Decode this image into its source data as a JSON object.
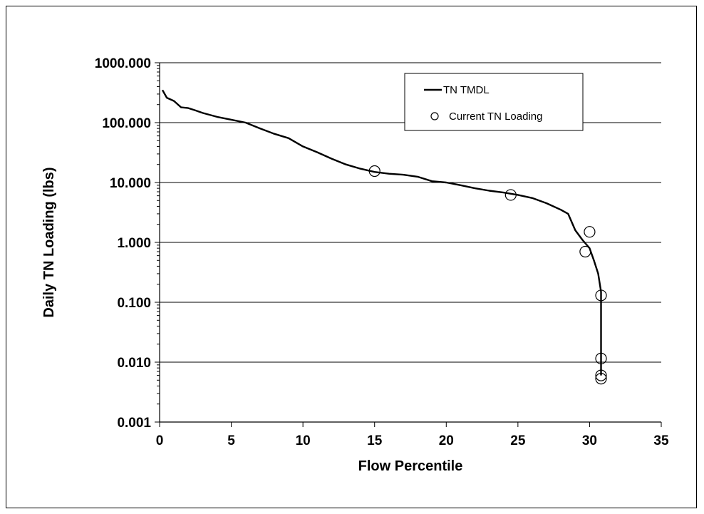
{
  "chart_data": {
    "type": "line",
    "title": "",
    "xlabel": "Flow Percentile",
    "ylabel": "Daily TN Loading (lbs)",
    "xlim": [
      0,
      35
    ],
    "ylim": [
      0.001,
      1000
    ],
    "yscale": "log",
    "grid": "horizontal",
    "legend_position": "top-right",
    "x_ticks": [
      "0",
      "5",
      "10",
      "15",
      "20",
      "25",
      "30",
      "35"
    ],
    "y_ticks": [
      "1000.000",
      "100.000",
      "10.000",
      "1.000",
      "0.100",
      "0.010",
      "0.001"
    ],
    "series": [
      {
        "name": "TN TMDL",
        "type": "line",
        "color": "#000000",
        "x": [
          0.2,
          0.5,
          1,
          1.5,
          2,
          2.5,
          3,
          4,
          5,
          6,
          7,
          8,
          9,
          10,
          11,
          12,
          13,
          14,
          15,
          16,
          17,
          18,
          19,
          20,
          21,
          22,
          23,
          24,
          25,
          26,
          27,
          28,
          28.5,
          29,
          29.5,
          30,
          30.3,
          30.6,
          30.8,
          30.8
        ],
        "y": [
          350,
          260,
          230,
          180,
          175,
          160,
          145,
          125,
          112,
          100,
          80,
          65,
          55,
          40,
          32,
          25,
          20,
          17,
          15,
          14,
          13.5,
          12.5,
          10.5,
          10,
          9,
          8,
          7.3,
          6.8,
          6.2,
          5.5,
          4.5,
          3.5,
          3.0,
          1.6,
          1.1,
          0.8,
          0.5,
          0.3,
          0.15,
          0.006
        ]
      },
      {
        "name": "Current TN Loading",
        "type": "scatter",
        "color": "#000000",
        "x": [
          15,
          24.5,
          29.7,
          30,
          30.8,
          30.8,
          30.8,
          30.8
        ],
        "y": [
          15.5,
          6.2,
          0.7,
          1.5,
          0.13,
          0.0115,
          0.006,
          0.0053
        ]
      }
    ]
  }
}
